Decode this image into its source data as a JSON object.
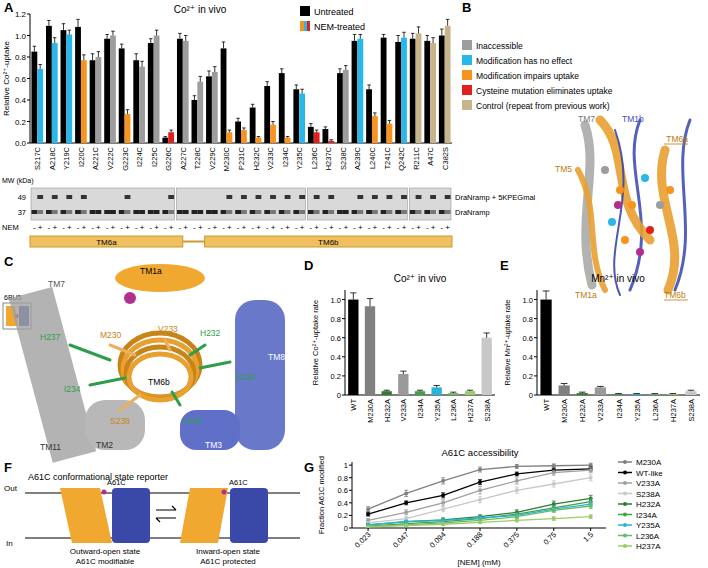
{
  "panel_labels": [
    "A",
    "B",
    "C",
    "D",
    "E",
    "F",
    "G"
  ],
  "chart_data": [
    {
      "type": "bar",
      "title": "Co²⁺ in vivo",
      "y_label": "Relative Co²⁺-uptake",
      "categories": [
        "S217C",
        "A218C",
        "Y219C",
        "I220C",
        "A221C",
        "V222C",
        "G223C",
        "I224C",
        "I225C",
        "G226C",
        "A227C",
        "T228C",
        "V229C",
        "M230C",
        "P231C",
        "H232C",
        "V233C",
        "I234C",
        "Y235C",
        "L236C",
        "H237C",
        "S238C",
        "A239C",
        "L240C",
        "T241C",
        "Q242C",
        "R211C",
        "A47C",
        "C382S"
      ],
      "series": [
        {
          "name": "Untreated",
          "color": "#000000",
          "values": [
            0.85,
            1.09,
            1.05,
            1.08,
            0.77,
            0.97,
            0.88,
            0.77,
            0.93,
            0.05,
            0.97,
            0.4,
            0.62,
            0.88,
            0.2,
            0.33,
            0.53,
            0.65,
            0.5,
            0.15,
            0.13,
            0.65,
            0.95,
            0.5,
            0.98,
            0.94,
            0.97,
            0.95,
            1.0
          ],
          "errors": [
            0.05,
            0.05,
            0.06,
            0.07,
            0.06,
            0.04,
            0.04,
            0.06,
            0.04,
            0.01,
            0.05,
            0.04,
            0.05,
            0.06,
            0.03,
            0.03,
            0.04,
            0.04,
            0.04,
            0.03,
            0.02,
            0.04,
            0.06,
            0.04,
            0.03,
            0.06,
            0.05,
            0.05,
            0.06
          ]
        },
        {
          "name": "NEM-treated",
          "color": "#f7941d",
          "colors": [
            "#29b6e8",
            "#29b6e8",
            "#29b6e8",
            "#f7941d",
            "#9d9d9d",
            "#9d9d9d",
            "#f7941d",
            "#9d9d9d",
            "#9d9d9d",
            "#e0201c",
            "#9d9d9d",
            "#9d9d9d",
            "#9d9d9d",
            "#f7941d",
            "#f7941d",
            "#f7941d",
            "#f7941d",
            "#f7941d",
            "#29b6e8",
            "#e0201c",
            "#e0201c",
            "#9d9d9d",
            "#29b6e8",
            "#f7941d",
            "#f7941d",
            "#29b6e8",
            "#c8b48a",
            "#c8b48a",
            "#c8b48a"
          ],
          "values": [
            0.69,
            0.93,
            1.01,
            0.77,
            0.8,
            1.0,
            0.27,
            0.71,
            1.0,
            0.1,
            0.95,
            0.57,
            0.66,
            0.1,
            0.12,
            0.05,
            0.17,
            0.05,
            0.46,
            0.1,
            0.02,
            0.68,
            0.97,
            0.25,
            0.18,
            0.98,
            1.02,
            0.93,
            1.09
          ],
          "errors": [
            0.04,
            0.05,
            0.04,
            0.05,
            0.05,
            0.04,
            0.04,
            0.05,
            0.05,
            0.02,
            0.05,
            0.05,
            0.05,
            0.02,
            0.02,
            0.01,
            0.03,
            0.01,
            0.04,
            0.02,
            0.01,
            0.04,
            0.04,
            0.03,
            0.03,
            0.05,
            0.06,
            0.05,
            0.06
          ]
        }
      ],
      "ylim": [
        0,
        1.2
      ],
      "yticks": [
        {
          "value": 0,
          "label": "0.0"
        },
        0.2,
        0.4,
        0.6,
        0.8,
        {
          "value": 1,
          "label": "1.0"
        },
        1.2
      ],
      "legend": "top"
    },
    {
      "type": "bar",
      "title": "Co²⁺ in vivo",
      "y_label": "Relative Co²⁺-uptake rate",
      "categories": [
        "WT",
        "M230A",
        "H232A",
        "V233A",
        "I234A",
        "Y235A",
        "L236A",
        "H237A",
        "S238A"
      ],
      "series": [
        {
          "name": "Co²⁺ in vivo",
          "color": "#000000",
          "colors": [
            "#000000",
            "#808080",
            "#2e7d32",
            "#9a9a9a",
            "#43a047",
            "#26b5d9",
            "#66bb6a",
            "#9ccc65",
            "#c8c8c8"
          ],
          "values": [
            1.0,
            0.93,
            0.04,
            0.22,
            0.04,
            0.08,
            0.02,
            0.04,
            0.6
          ],
          "errors": [
            0.07,
            0.08,
            0.01,
            0.03,
            0.01,
            0.02,
            0.01,
            0.01,
            0.05
          ]
        }
      ],
      "ylim": [
        0,
        1.1
      ],
      "yticks": [
        0,
        0.2,
        0.4,
        0.6,
        0.8,
        {
          "value": 1,
          "label": "1.0"
        }
      ]
    },
    {
      "type": "bar",
      "title": "Mn²⁺ in vivo",
      "y_label": "Relative Mn²⁺-uptake rate",
      "categories": [
        "WT",
        "M230A",
        "H232A",
        "V233A",
        "I234A",
        "Y235A",
        "L236A",
        "H237A",
        "S238A"
      ],
      "series": [
        {
          "name": "Mn²⁺ in vivo",
          "color": "#000000",
          "colors": [
            "#000000",
            "#808080",
            "#2e7d32",
            "#9a9a9a",
            "#43a047",
            "#26b5d9",
            "#66bb6a",
            "#9ccc65",
            "#c8c8c8"
          ],
          "values": [
            1.0,
            0.1,
            0.02,
            0.08,
            0.01,
            0.01,
            0.01,
            0.01,
            0.04
          ],
          "errors": [
            0.09,
            0.02,
            0.01,
            0.01,
            0.005,
            0.005,
            0.005,
            0.005,
            0.01
          ]
        }
      ],
      "ylim": [
        0,
        1.1
      ],
      "yticks": [
        0,
        0.2,
        0.4,
        0.6,
        0.8,
        {
          "value": 1,
          "label": "1.0"
        }
      ]
    },
    {
      "type": "line",
      "title": "A61C accessibility",
      "x_label": "[NEM] (mM)",
      "y_label": "Fraction A61C modified",
      "x": [
        0.023,
        0.047,
        0.094,
        0.188,
        0.375,
        0.75,
        1.5
      ],
      "log": "x",
      "marker": "circle",
      "legend": "right",
      "xlim": [
        0.017,
        2
      ],
      "xticks": [
        0.023,
        0.047,
        0.094,
        0.188,
        0.375,
        0.75,
        1.5
      ],
      "ylim": [
        0,
        1.05
      ],
      "yticks": [
        0,
        0.2,
        0.4,
        0.6,
        0.8,
        1
      ],
      "series": [
        {
          "name": "M230A",
          "color": "#808080",
          "values": [
            0.3,
            0.55,
            0.75,
            0.93,
            0.98,
            0.99,
            1.0
          ],
          "errors": [
            0.04,
            0.05,
            0.05,
            0.04,
            0.03,
            0.03,
            0.03
          ]
        },
        {
          "name": "WT-like",
          "color": "#000000",
          "values": [
            0.22,
            0.4,
            0.52,
            0.73,
            0.86,
            0.92,
            0.94
          ],
          "errors": [
            0.03,
            0.03,
            0.04,
            0.04,
            0.03,
            0.03,
            0.03
          ]
        },
        {
          "name": "V233A",
          "color": "#a0a0a0",
          "values": [
            0.12,
            0.25,
            0.4,
            0.6,
            0.75,
            0.88,
            0.92
          ],
          "errors": [
            0.03,
            0.04,
            0.05,
            0.06,
            0.05,
            0.04,
            0.04
          ]
        },
        {
          "name": "S238A",
          "color": "#c8c8c8",
          "values": [
            0.08,
            0.15,
            0.3,
            0.45,
            0.6,
            0.7,
            0.8
          ],
          "errors": [
            0.02,
            0.03,
            0.04,
            0.05,
            0.05,
            0.05,
            0.05
          ]
        },
        {
          "name": "H232A",
          "color": "#2e7d32",
          "values": [
            0.05,
            0.1,
            0.13,
            0.18,
            0.25,
            0.38,
            0.47
          ],
          "errors": [
            0.02,
            0.02,
            0.03,
            0.03,
            0.04,
            0.05,
            0.05
          ]
        },
        {
          "name": "I234A",
          "color": "#43a047",
          "values": [
            0.03,
            0.07,
            0.1,
            0.15,
            0.22,
            0.32,
            0.42
          ],
          "errors": [
            0.02,
            0.02,
            0.02,
            0.03,
            0.03,
            0.04,
            0.05
          ]
        },
        {
          "name": "Y235A",
          "color": "#26b5d9",
          "values": [
            0.05,
            0.1,
            0.12,
            0.16,
            0.2,
            0.3,
            0.38
          ],
          "errors": [
            0.02,
            0.02,
            0.02,
            0.03,
            0.03,
            0.04,
            0.04
          ]
        },
        {
          "name": "L236A",
          "color": "#66bb6a",
          "values": [
            0.02,
            0.05,
            0.08,
            0.12,
            0.18,
            0.28,
            0.35
          ],
          "errors": [
            0.01,
            0.02,
            0.02,
            0.02,
            0.03,
            0.03,
            0.04
          ]
        },
        {
          "name": "H237A",
          "color": "#9ccc65",
          "values": [
            0.02,
            0.04,
            0.06,
            0.09,
            0.12,
            0.15,
            0.18
          ],
          "errors": [
            0.01,
            0.01,
            0.02,
            0.02,
            0.02,
            0.03,
            0.03
          ]
        }
      ]
    }
  ],
  "class_legend": [
    {
      "label": "Inaccessible",
      "color": "#9d9d9d"
    },
    {
      "label": "Modification has no effect",
      "color": "#29b6e8"
    },
    {
      "label": "Modification impairs uptake",
      "color": "#f7941d"
    },
    {
      "label": "Cysteine mutation eliminates uptake",
      "color": "#e0201c"
    },
    {
      "label": "Control (repeat from previous work)",
      "color": "#c8b48a"
    }
  ],
  "panel_a_gel": {
    "mw_label": "MW (kDa)",
    "mw": [
      "49",
      "37"
    ],
    "bands": [
      "DraNramp + 5KPEGmal",
      "DraNramp"
    ],
    "nem_label": "NEM",
    "nem_signs": [
      "-",
      "+"
    ],
    "helices": [
      "TM6a",
      "TM6b"
    ]
  },
  "panel_b": {
    "labels": [
      "TM7",
      "TM1b",
      "TM6a",
      "TM5",
      "TM1a",
      "TM6b"
    ]
  },
  "panel_c": {
    "inset": "6BU5",
    "helices": [
      "TM7",
      "TM1a",
      "TM8",
      "TM11",
      "TM2",
      "TM3",
      "TM6b"
    ],
    "residues": [
      "H237",
      "M230",
      "V233",
      "H232",
      "L236",
      "I234",
      "Y235",
      "S238"
    ]
  },
  "panel_f": {
    "title": "A61C conformational state reporter",
    "out": "Out",
    "in": "In",
    "residue": "A61C",
    "states": [
      {
        "name": "Outward-open state",
        "note": "A61C modifiable"
      },
      {
        "name": "Inward-open state",
        "note": "A61C protected"
      }
    ]
  }
}
